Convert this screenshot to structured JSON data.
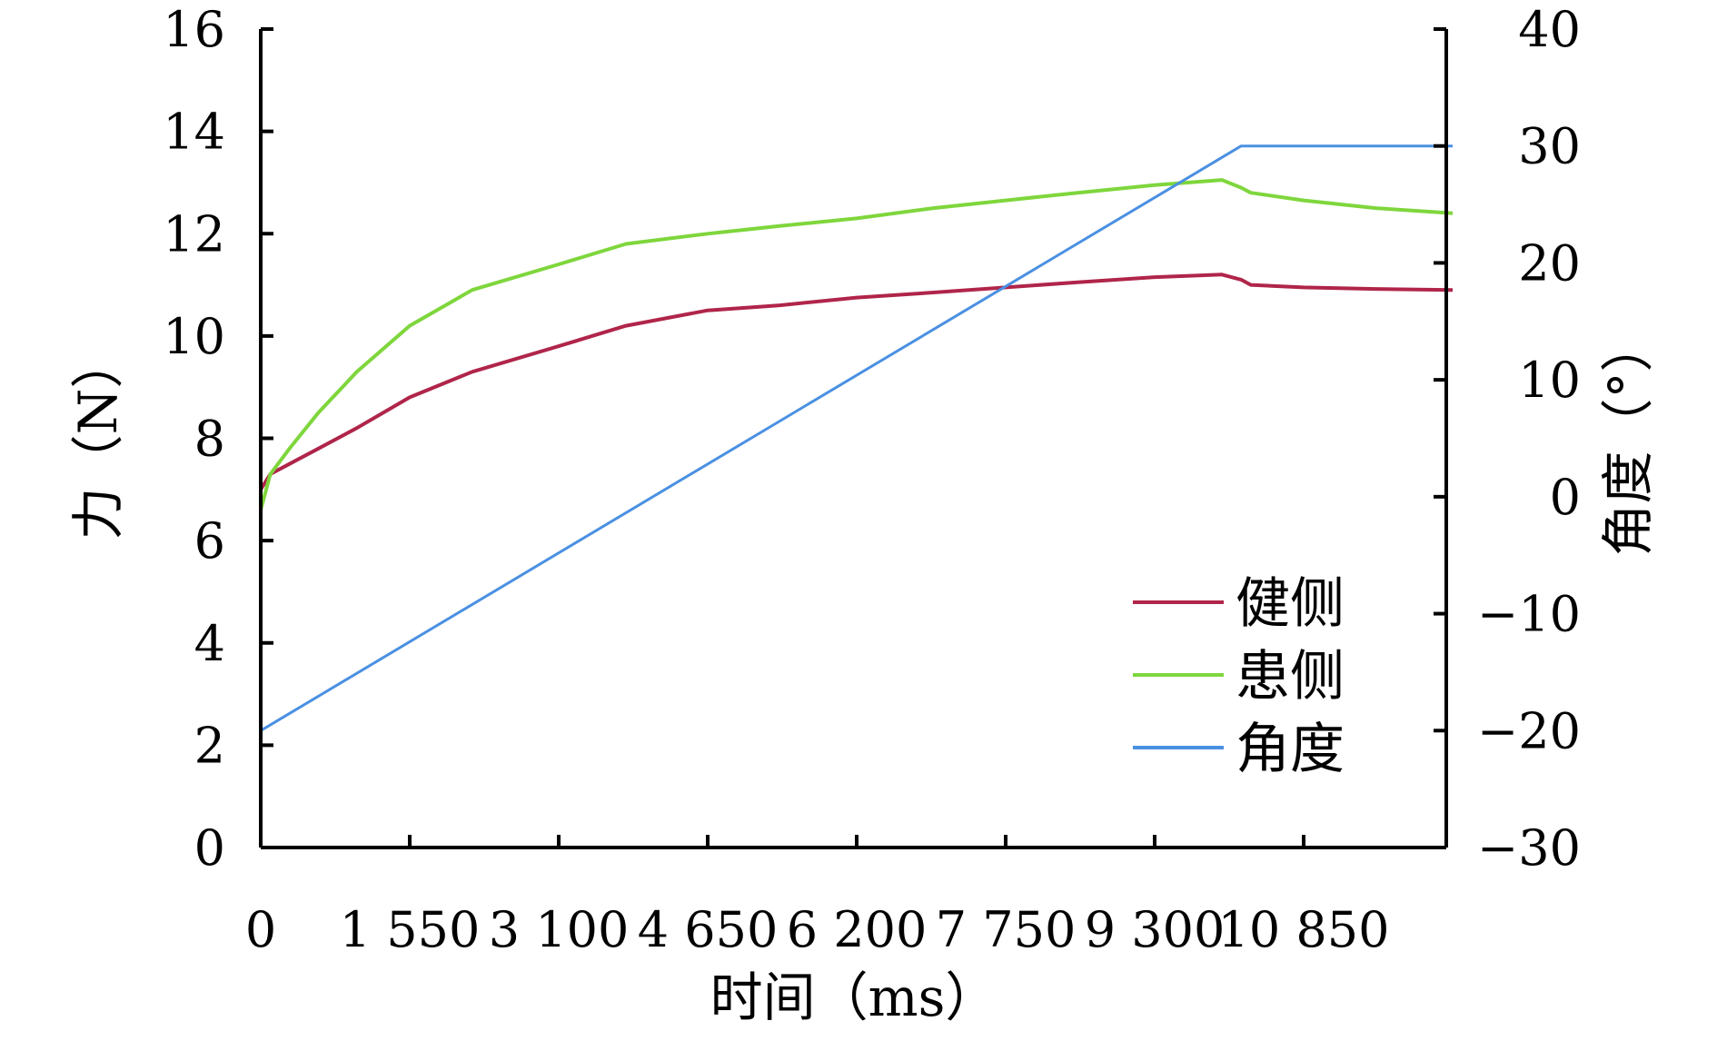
{
  "chart_data": {
    "type": "line",
    "xlabel": "时间（ms）",
    "ylabel_left": "力（N）",
    "ylabel_right": "角度（°）",
    "x_range": [
      0,
      12400
    ],
    "ylim_left": [
      0,
      16
    ],
    "ylim_right": [
      -30,
      40
    ],
    "x_ticks": [
      0,
      1550,
      3100,
      4650,
      6200,
      7750,
      9300,
      10850
    ],
    "x_tick_labels": [
      "0",
      "1 550",
      "3 100",
      "4 650",
      "6 200",
      "7 750",
      "9 300",
      "10 850"
    ],
    "y_left_ticks": [
      0,
      2,
      4,
      6,
      8,
      10,
      12,
      14,
      16
    ],
    "y_left_tick_labels": [
      "0",
      "2",
      "4",
      "6",
      "8",
      "10",
      "12",
      "14",
      "16"
    ],
    "y_right_ticks": [
      -30,
      -20,
      -10,
      0,
      10,
      20,
      30,
      40
    ],
    "y_right_tick_labels": [
      "−30",
      "−20",
      "−10",
      "0",
      "10",
      "20",
      "30",
      "40"
    ],
    "grid": false,
    "legend_position": "bottom-right",
    "series": [
      {
        "name": "健侧",
        "axis": "left",
        "color": "#B0254A",
        "x": [
          0,
          100,
          300,
          600,
          1000,
          1550,
          2200,
          3100,
          3800,
          4650,
          5400,
          6200,
          7000,
          7750,
          8500,
          9300,
          10000,
          10200,
          10300,
          10850,
          11600,
          12400
        ],
        "y": [
          7.0,
          7.3,
          7.5,
          7.8,
          8.2,
          8.8,
          9.3,
          9.8,
          10.2,
          10.5,
          10.6,
          10.75,
          10.85,
          10.95,
          11.05,
          11.15,
          11.2,
          11.1,
          11.0,
          10.95,
          10.92,
          10.9
        ]
      },
      {
        "name": "患侧",
        "axis": "left",
        "color": "#7ED63C",
        "x": [
          0,
          100,
          300,
          600,
          1000,
          1550,
          2200,
          3100,
          3800,
          4650,
          5400,
          6200,
          7000,
          7750,
          8500,
          9300,
          10000,
          10200,
          10300,
          10850,
          11600,
          12400
        ],
        "y": [
          6.6,
          7.3,
          7.8,
          8.5,
          9.3,
          10.2,
          10.9,
          11.4,
          11.8,
          12.0,
          12.15,
          12.3,
          12.5,
          12.65,
          12.8,
          12.95,
          13.05,
          12.9,
          12.8,
          12.65,
          12.5,
          12.4
        ]
      },
      {
        "name": "角度",
        "axis": "right",
        "color": "#4A90E2",
        "x": [
          0,
          10200,
          12400
        ],
        "y": [
          -20,
          30,
          30
        ]
      }
    ]
  }
}
